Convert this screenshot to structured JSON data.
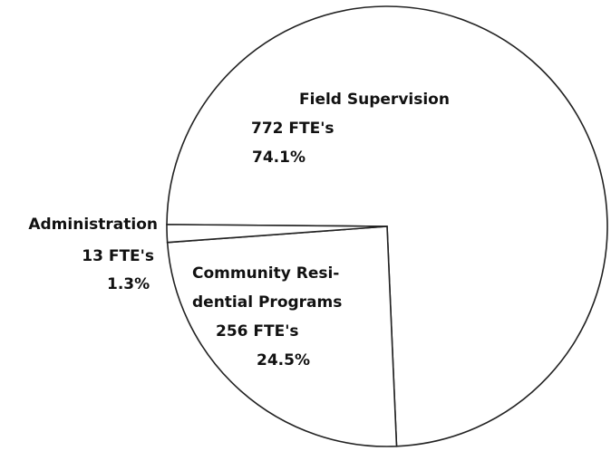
{
  "chart_data": {
    "type": "pie",
    "categories": [
      "Field Supervision",
      [
        "Community Resi-",
        "dential Programs"
      ],
      "Administration"
    ],
    "values": [
      74.1,
      24.5,
      1.3
    ],
    "value_labels": [
      "74.1%",
      "24.5%",
      "1.3%"
    ],
    "fte_values": [
      772,
      256,
      13
    ],
    "fte_labels": [
      "772 FTE's",
      "256 FTE's",
      "13 FTE's"
    ],
    "color": "#ffffff"
  }
}
